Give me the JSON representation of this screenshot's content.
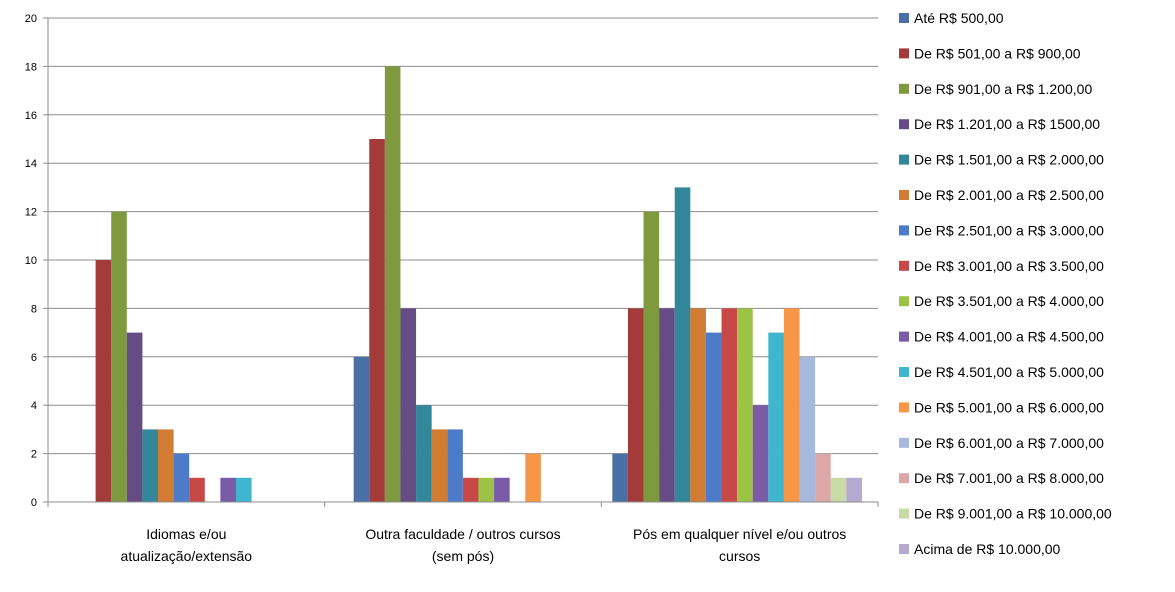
{
  "chart_data": {
    "type": "bar",
    "title": "",
    "xlabel": "",
    "ylabel": "",
    "ylim": [
      0,
      20
    ],
    "yticks": [
      0,
      2,
      4,
      6,
      8,
      10,
      12,
      14,
      16,
      18,
      20
    ],
    "grid": true,
    "legend_position": "right",
    "categories": [
      [
        "Idiomas e/ou",
        "atualização/extensão"
      ],
      [
        "Outra faculdade  / outros cursos",
        "(sem pós)"
      ],
      [
        "Pós em qualquer nível e/ou outros",
        "cursos"
      ]
    ],
    "series": [
      {
        "name": "Até R$ 500,00",
        "color": "#4A6FA5",
        "values": [
          0,
          6,
          2
        ]
      },
      {
        "name": "De R$ 501,00 a R$ 900,00",
        "color": "#A33B3B",
        "values": [
          10,
          15,
          8
        ]
      },
      {
        "name": "De R$ 901,00 a R$ 1.200,00",
        "color": "#7F9A3E",
        "values": [
          12,
          18,
          12
        ]
      },
      {
        "name": "De R$ 1.201,00 a R$ 1500,00",
        "color": "#654C85",
        "values": [
          7,
          8,
          8
        ]
      },
      {
        "name": "De R$ 1.501,00 a R$ 2.000,00",
        "color": "#33879A",
        "values": [
          3,
          4,
          13
        ]
      },
      {
        "name": "De R$ 2.001,00 a R$ 2.500,00",
        "color": "#D17B33",
        "values": [
          3,
          3,
          8
        ]
      },
      {
        "name": "De R$ 2.501,00 a R$ 3.000,00",
        "color": "#4C7CC7",
        "values": [
          2,
          3,
          7
        ]
      },
      {
        "name": "De R$ 3.001,00 a R$ 3.500,00",
        "color": "#C84848",
        "values": [
          1,
          1,
          8
        ]
      },
      {
        "name": "De R$ 3.501,00 a R$ 4.000,00",
        "color": "#9CC343",
        "values": [
          0,
          1,
          8
        ]
      },
      {
        "name": "De R$ 4.001,00 a R$ 4.500,00",
        "color": "#7A5BA8",
        "values": [
          1,
          1,
          4
        ]
      },
      {
        "name": "De R$ 4.501,00 a R$ 5.000,00",
        "color": "#3FB5CF",
        "values": [
          1,
          0,
          7
        ]
      },
      {
        "name": "De R$ 5.001,00 a R$ 6.000,00",
        "color": "#F79646",
        "values": [
          0,
          2,
          8
        ]
      },
      {
        "name": "De R$ 6.001,00 a R$ 7.000,00",
        "color": "#A6B8DC",
        "values": [
          0,
          0,
          6
        ]
      },
      {
        "name": "De R$ 7.001,00 a R$ 8.000,00",
        "color": "#DDA7A7",
        "values": [
          0,
          0,
          2
        ]
      },
      {
        "name": "De R$ 9.001,00 a R$ 10.000,00",
        "color": "#C8DBA5",
        "values": [
          0,
          0,
          1
        ]
      },
      {
        "name": "Acima de  R$ 10.000,00",
        "color": "#B4A9CE",
        "values": [
          0,
          0,
          1
        ]
      }
    ]
  }
}
